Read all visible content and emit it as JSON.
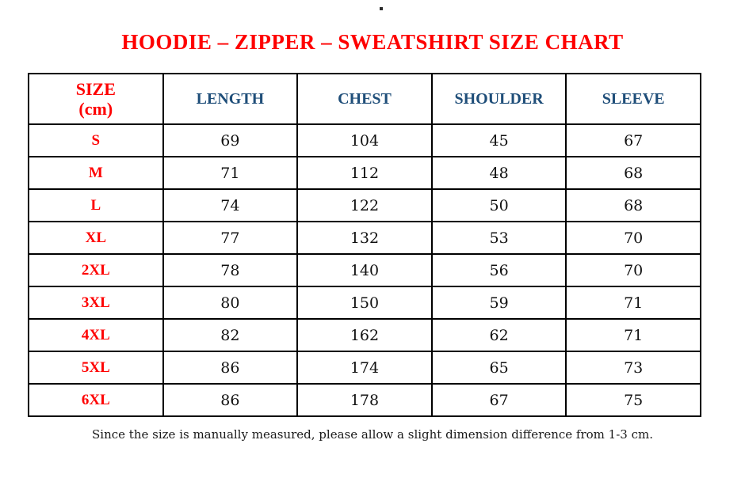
{
  "title": "HOODIE – ZIPPER – SWEATSHIRT SIZE CHART",
  "table": {
    "header": {
      "size_label": "SIZE",
      "size_unit": "(cm)",
      "columns": [
        "LENGTH",
        "CHEST",
        "SHOULDER",
        "SLEEVE"
      ]
    },
    "rows": [
      {
        "size": "S",
        "length": "69",
        "chest": "104",
        "shoulder": "45",
        "sleeve": "67"
      },
      {
        "size": "M",
        "length": "71",
        "chest": "112",
        "shoulder": "48",
        "sleeve": "68"
      },
      {
        "size": "L",
        "length": "74",
        "chest": "122",
        "shoulder": "50",
        "sleeve": "68"
      },
      {
        "size": "XL",
        "length": "77",
        "chest": "132",
        "shoulder": "53",
        "sleeve": "70"
      },
      {
        "size": "2XL",
        "length": "78",
        "chest": "140",
        "shoulder": "56",
        "sleeve": "70"
      },
      {
        "size": "3XL",
        "length": "80",
        "chest": "150",
        "shoulder": "59",
        "sleeve": "71"
      },
      {
        "size": "4XL",
        "length": "82",
        "chest": "162",
        "shoulder": "62",
        "sleeve": "71"
      },
      {
        "size": "5XL",
        "length": "86",
        "chest": "174",
        "shoulder": "65",
        "sleeve": "73"
      },
      {
        "size": "6XL",
        "length": "86",
        "chest": "178",
        "shoulder": "67",
        "sleeve": "75"
      }
    ]
  },
  "footer_note": "Since the size is manually measured, please allow a slight dimension difference from 1-3 cm.",
  "colors": {
    "accent_red": "#fe0000",
    "header_blue": "#1f4e79",
    "text_black": "#111111",
    "border": "#000000"
  },
  "chart_data": {
    "type": "table",
    "title": "HOODIE – ZIPPER – SWEATSHIRT SIZE CHART",
    "columns": [
      "SIZE (cm)",
      "LENGTH",
      "CHEST",
      "SHOULDER",
      "SLEEVE"
    ],
    "rows": [
      [
        "S",
        69,
        104,
        45,
        67
      ],
      [
        "M",
        71,
        112,
        48,
        68
      ],
      [
        "L",
        74,
        122,
        50,
        68
      ],
      [
        "XL",
        77,
        132,
        53,
        70
      ],
      [
        "2XL",
        78,
        140,
        56,
        70
      ],
      [
        "3XL",
        80,
        150,
        59,
        71
      ],
      [
        "4XL",
        82,
        162,
        62,
        71
      ],
      [
        "5XL",
        86,
        174,
        65,
        73
      ],
      [
        "6XL",
        86,
        178,
        67,
        75
      ]
    ],
    "units": "cm",
    "note": "Since the size is manually measured, please allow a slight dimension difference from 1-3 cm."
  }
}
